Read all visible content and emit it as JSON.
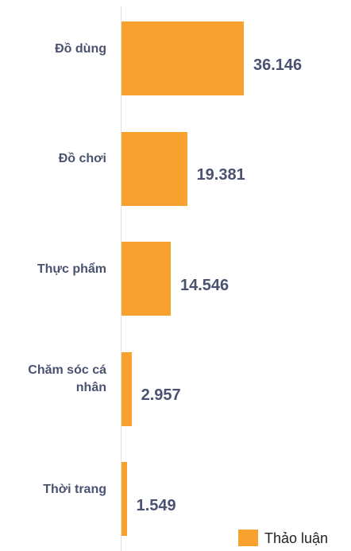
{
  "chart_data": {
    "type": "hbar",
    "categories": [
      "Đồ dùng",
      "Đồ chơi",
      "Thực phẩm",
      "Chăm sóc cá nhân",
      "Thời trang"
    ],
    "series": [
      {
        "name": "Thảo luận",
        "color": "#f9a12e",
        "values": [
          36146,
          19381,
          14546,
          2957,
          1549
        ],
        "value_labels": [
          "36.146",
          "19.381",
          "14.546",
          "2.957",
          "1.549"
        ]
      }
    ]
  }
}
